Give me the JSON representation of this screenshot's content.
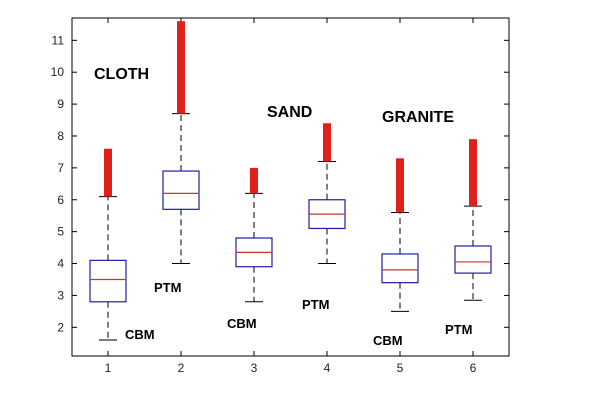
{
  "chart_data": {
    "type": "boxplot",
    "title": "",
    "xlabel": "",
    "ylabel": "",
    "ylim": [
      1.1,
      11.7
    ],
    "y_ticks": [
      "2",
      "3",
      "4",
      "5",
      "6",
      "7",
      "8",
      "9",
      "10",
      "11"
    ],
    "categories": [
      "1",
      "2",
      "3",
      "4",
      "5",
      "6"
    ],
    "grid": false,
    "boxes": [
      {
        "category": "1",
        "whisker_low": 1.6,
        "q1": 2.8,
        "median": 3.5,
        "q3": 4.1,
        "whisker_high": 6.1,
        "outlier_range": [
          6.1,
          7.6
        ]
      },
      {
        "category": "2",
        "whisker_low": 4.0,
        "q1": 5.7,
        "median": 6.2,
        "q3": 6.9,
        "whisker_high": 8.7,
        "outlier_range": [
          8.7,
          11.6
        ]
      },
      {
        "category": "3",
        "whisker_low": 2.8,
        "q1": 3.9,
        "median": 4.35,
        "q3": 4.8,
        "whisker_high": 6.2,
        "outlier_range": [
          6.2,
          7.0
        ]
      },
      {
        "category": "4",
        "whisker_low": 4.0,
        "q1": 5.1,
        "median": 5.55,
        "q3": 6.0,
        "whisker_high": 7.2,
        "outlier_range": [
          7.2,
          8.4
        ]
      },
      {
        "category": "5",
        "whisker_low": 2.5,
        "q1": 3.4,
        "median": 3.8,
        "q3": 4.3,
        "whisker_high": 5.6,
        "outlier_range": [
          5.6,
          7.3
        ]
      },
      {
        "category": "6",
        "whisker_low": 2.85,
        "q1": 3.7,
        "median": 4.05,
        "q3": 4.55,
        "whisker_high": 5.8,
        "outlier_range": [
          5.8,
          7.9
        ]
      }
    ],
    "group_labels": [
      "CLOTH",
      "SAND",
      "GRANITE"
    ],
    "method_labels": [
      "CBM",
      "PTM",
      "CBM",
      "PTM",
      "CBM",
      "PTM"
    ],
    "colors": {
      "box": "#1f1fa8",
      "median": "#c0392b",
      "whisker": "#000000",
      "outlier": "#e0201b",
      "axis": "#000000"
    }
  }
}
